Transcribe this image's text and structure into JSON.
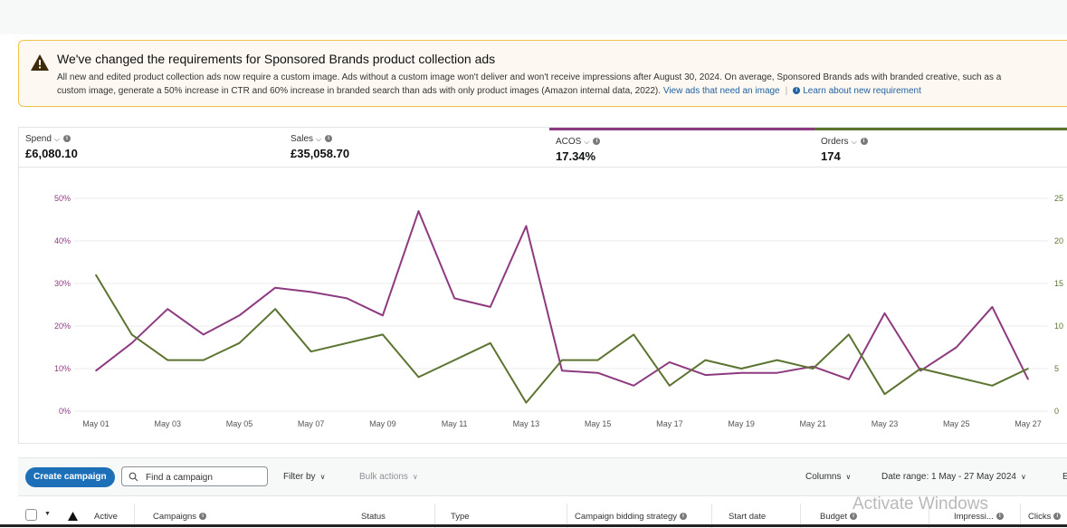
{
  "banner": {
    "title": "We've changed the requirements for Sponsored Brands product collection ads",
    "line1": "All new and edited product collection ads now require a custom image. Ads without a custom image won't deliver and won't receive impressions after August 30, 2024. On average, Sponsored Brands ads with branded creative, such as a",
    "line2": "custom image, generate a 50% increase in CTR and 60% increase in branded search than ads with only product images (Amazon internal data, 2022).",
    "link_view": "View ads that need an image",
    "link_learn": "Learn about new requirement"
  },
  "metrics": [
    {
      "label": "Spend",
      "value": "£6,080.10"
    },
    {
      "label": "Sales",
      "value": "£35,058.70"
    },
    {
      "label": "ACOS",
      "value": "17.34%"
    },
    {
      "label": "Orders",
      "value": "174"
    }
  ],
  "chart_data": {
    "type": "line",
    "title": "",
    "x": [
      "May 01",
      "May 02",
      "May 03",
      "May 04",
      "May 05",
      "May 06",
      "May 07",
      "May 08",
      "May 09",
      "May 10",
      "May 11",
      "May 12",
      "May 13",
      "May 14",
      "May 15",
      "May 16",
      "May 17",
      "May 18",
      "May 19",
      "May 20",
      "May 21",
      "May 22",
      "May 23",
      "May 24",
      "May 25",
      "May 26",
      "May 27"
    ],
    "x_tick_labels": [
      "May 01",
      "May 03",
      "May 05",
      "May 07",
      "May 09",
      "May 11",
      "May 13",
      "May 15",
      "May 17",
      "May 19",
      "May 21",
      "May 23",
      "May 25",
      "May 27"
    ],
    "left_axis": {
      "ticks": [
        "0%",
        "10%",
        "20%",
        "30%",
        "40%",
        "50%"
      ],
      "ylim": [
        0,
        50
      ]
    },
    "right_axis": {
      "ticks": [
        "0",
        "5",
        "10",
        "15",
        "20",
        "25"
      ],
      "ylim": [
        0,
        25
      ]
    },
    "series": [
      {
        "name": "ACOS",
        "axis": "left",
        "color": "#8e3a80",
        "values": [
          9.5,
          16,
          24,
          18,
          22.5,
          29,
          28,
          26.5,
          22.5,
          47,
          26.5,
          24.5,
          43.5,
          9.5,
          9,
          6,
          11.5,
          8.5,
          9,
          9,
          10.5,
          7.5,
          23,
          9.5,
          15,
          24.5,
          7.5
        ]
      },
      {
        "name": "Orders",
        "axis": "right",
        "color": "#5c7430",
        "values": [
          16,
          9,
          6,
          6,
          8,
          12,
          7,
          8,
          9,
          4,
          6,
          8,
          1,
          6,
          6,
          9,
          3,
          6,
          5,
          6,
          5,
          9,
          2,
          5,
          4,
          3,
          5
        ]
      }
    ]
  },
  "toolbar": {
    "create_label": "Create campaign",
    "search_placeholder": "Find a campaign",
    "filter_label": "Filter by",
    "bulk_label": "Bulk actions",
    "columns_label": "Columns",
    "date_range_label": "Date range: 1 May - 27 May 2024",
    "export_label": "E"
  },
  "table_headers": {
    "active": "Active",
    "campaigns": "Campaigns",
    "status": "Status",
    "type": "Type",
    "bidding": "Campaign bidding strategy",
    "start_date": "Start date",
    "budget": "Budget",
    "impressions": "Impressi...",
    "clicks": "Clicks"
  },
  "watermark": "Activate Windows"
}
